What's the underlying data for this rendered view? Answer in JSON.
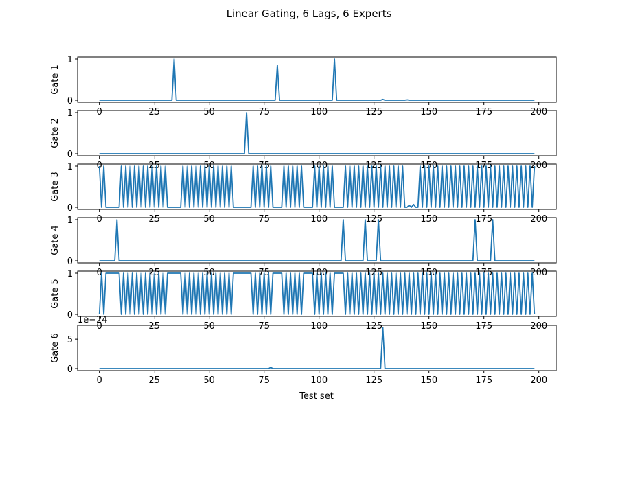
{
  "chart_data": {
    "type": "line",
    "title": "Linear Gating, 6 Lags, 6 Experts",
    "xlabel": "Test set",
    "line_color": "#1f77b4",
    "x_range": [
      0,
      198
    ],
    "xlim": [
      -9.9,
      207.9
    ],
    "xticks": [
      0,
      25,
      50,
      75,
      100,
      125,
      150,
      175,
      200
    ],
    "panels": [
      {
        "ylabel": "Gate 1",
        "ylim": [
          -0.05,
          1.05
        ],
        "yticks": [
          0,
          1
        ],
        "offset_text": "",
        "baseline": 0,
        "spikes": [
          [
            34,
            1.0
          ],
          [
            81,
            0.85
          ],
          [
            107,
            1.0
          ],
          [
            129,
            0.02
          ],
          [
            140,
            0.01
          ]
        ]
      },
      {
        "ylabel": "Gate 2",
        "ylim": [
          -0.05,
          1.05
        ],
        "yticks": [
          0,
          1
        ],
        "offset_text": "",
        "baseline": 0,
        "spikes": [
          [
            67,
            1.0
          ]
        ]
      },
      {
        "ylabel": "Gate 3",
        "ylim": [
          -0.05,
          1.05
        ],
        "yticks": [
          0,
          1
        ],
        "offset_text": "",
        "baseline": 0,
        "flat_regions": [
          [
            4,
            9
          ],
          [
            31,
            36
          ],
          [
            62,
            69
          ],
          [
            80,
            82
          ],
          [
            93,
            96
          ],
          [
            108,
            110
          ]
        ],
        "alternating": true,
        "dips": [
          [
            140,
            0.0
          ],
          [
            141,
            0.05
          ],
          [
            142,
            0.0
          ],
          [
            143,
            0.07
          ],
          [
            144,
            0.0
          ]
        ]
      },
      {
        "ylabel": "Gate 4",
        "ylim": [
          -0.05,
          1.05
        ],
        "yticks": [
          0,
          1
        ],
        "offset_text": "",
        "baseline": 0,
        "spikes": [
          [
            8,
            1.0
          ],
          [
            111,
            1.0
          ],
          [
            121,
            1.0
          ],
          [
            127,
            1.0
          ],
          [
            171,
            1.0
          ],
          [
            179,
            1.0
          ]
        ]
      },
      {
        "ylabel": "Gate 5",
        "ylim": [
          -0.05,
          1.05
        ],
        "yticks": [
          0,
          1
        ],
        "offset_text": "",
        "baseline": 1,
        "flat_regions": [
          [
            4,
            9
          ],
          [
            31,
            36
          ],
          [
            62,
            69
          ],
          [
            80,
            82
          ],
          [
            93,
            96
          ],
          [
            108,
            110
          ]
        ],
        "alternating": true
      },
      {
        "ylabel": "Gate 6",
        "ylim": [
          -0.35,
          7.35
        ],
        "yticks": [
          0,
          5
        ],
        "offset_text": "1e−24",
        "baseline": 0,
        "spikes": [
          [
            78,
            0.2
          ],
          [
            129,
            7.0
          ]
        ]
      }
    ]
  }
}
